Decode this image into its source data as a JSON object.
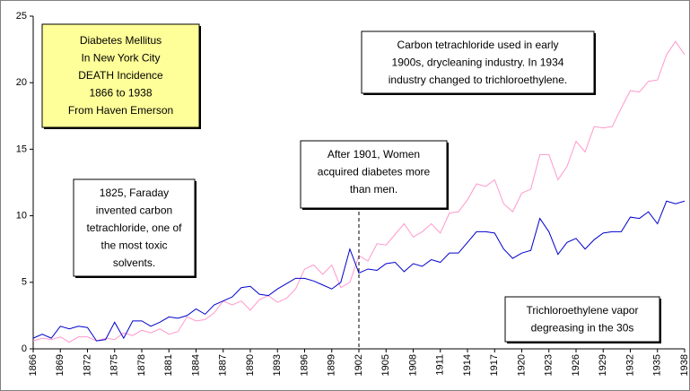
{
  "chart_data": {
    "type": "line",
    "x": [
      1866,
      1867,
      1868,
      1869,
      1870,
      1871,
      1872,
      1873,
      1874,
      1875,
      1876,
      1877,
      1878,
      1879,
      1880,
      1881,
      1882,
      1883,
      1884,
      1885,
      1886,
      1887,
      1888,
      1889,
      1890,
      1891,
      1892,
      1893,
      1894,
      1895,
      1896,
      1897,
      1898,
      1899,
      1900,
      1901,
      1902,
      1903,
      1904,
      1905,
      1906,
      1907,
      1908,
      1909,
      1910,
      1911,
      1912,
      1913,
      1914,
      1915,
      1916,
      1917,
      1918,
      1919,
      1920,
      1921,
      1922,
      1923,
      1924,
      1925,
      1926,
      1927,
      1928,
      1929,
      1930,
      1931,
      1932,
      1933,
      1934,
      1935,
      1936,
      1937,
      1938
    ],
    "series": [
      {
        "color": "#ff99cc",
        "values": [
          0.6,
          0.8,
          0.7,
          0.9,
          0.5,
          0.9,
          0.9,
          0.6,
          0.8,
          0.7,
          1.2,
          1.0,
          1.4,
          1.2,
          1.5,
          1.1,
          1.3,
          2.4,
          2.1,
          2.2,
          2.7,
          3.6,
          3.3,
          3.6,
          2.9,
          3.7,
          4.0,
          3.5,
          3.8,
          4.5,
          6.0,
          6.3,
          5.6,
          6.3,
          4.6,
          5.0,
          7.0,
          6.6,
          7.9,
          7.8,
          8.6,
          9.4,
          8.4,
          8.8,
          9.4,
          8.7,
          10.2,
          10.3,
          11.2,
          12.4,
          12.2,
          12.7,
          10.9,
          10.3,
          11.7,
          12.0,
          14.6,
          14.6,
          12.7,
          13.7,
          15.6,
          14.8,
          16.7,
          16.6,
          16.7,
          18.1,
          19.4,
          19.3,
          20.1,
          20.2,
          22.1,
          23.1,
          22.1
        ]
      },
      {
        "color": "#0000cc",
        "values": [
          0.8,
          1.1,
          0.8,
          1.7,
          1.5,
          1.7,
          1.6,
          0.6,
          0.7,
          2.0,
          0.8,
          2.1,
          2.1,
          1.7,
          2.0,
          2.4,
          2.3,
          2.5,
          3.0,
          2.6,
          3.3,
          3.6,
          3.9,
          4.6,
          4.7,
          4.1,
          4.0,
          4.5,
          4.9,
          5.3,
          5.3,
          5.1,
          4.8,
          4.5,
          5.0,
          7.5,
          5.7,
          6.0,
          5.9,
          6.4,
          6.5,
          5.8,
          6.4,
          6.2,
          6.7,
          6.5,
          7.2,
          7.2,
          8.0,
          8.8,
          8.8,
          8.7,
          7.5,
          6.8,
          7.2,
          7.4,
          9.8,
          8.8,
          7.1,
          8.0,
          8.3,
          7.5,
          8.2,
          8.7,
          8.8,
          8.8,
          9.9,
          9.8,
          10.3,
          9.4,
          11.1,
          10.9,
          11.1
        ]
      }
    ],
    "xlim": [
      1866,
      1938
    ],
    "xticks": [
      1866,
      1869,
      1872,
      1875,
      1878,
      1881,
      1884,
      1887,
      1890,
      1893,
      1896,
      1899,
      1902,
      1905,
      1908,
      1911,
      1914,
      1917,
      1920,
      1923,
      1926,
      1929,
      1932,
      1935,
      1938
    ],
    "ylim": [
      0,
      25
    ],
    "yticks": [
      0,
      5,
      10,
      15,
      20,
      25
    ],
    "vline_x": 1902,
    "annotations": [
      {
        "lines": [
          "Diabetes Mellitus",
          "In New York City",
          "DEATH Incidence",
          "1866 to 1938",
          "From Haven Emerson"
        ]
      },
      {
        "lines": [
          "Carbon tetrachloride used in early",
          "1900s, drycleaning industry.  In 1934",
          "industry changed to trichloroethylene."
        ]
      },
      {
        "lines": [
          "After 1901, Women",
          "acquired diabetes more",
          "than men."
        ]
      },
      {
        "lines": [
          "1825, Faraday",
          "invented carbon",
          "tetrachloride, one of",
          "the most toxic",
          "solvents."
        ]
      },
      {
        "lines": [
          "Trichloroethylene vapor",
          "degreasing in the 30s"
        ]
      }
    ]
  }
}
